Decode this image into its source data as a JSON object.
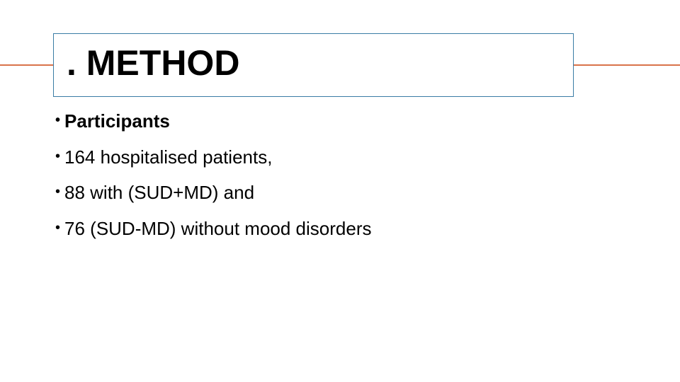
{
  "slide": {
    "title": ". METHOD",
    "title_box_border_color": "#3a7ca5",
    "title_fontsize": 50,
    "title_font_weight": 700,
    "accent_rule_color": "#d9734a",
    "bullets": [
      {
        "text": "Participants",
        "bold": true
      },
      {
        "text": "164 hospitalised patients,",
        "bold": false
      },
      {
        "text": "88 with (SUD+MD) and",
        "bold": false
      },
      {
        "text": "76 (SUD-MD) without mood disorders",
        "bold": false
      }
    ],
    "body_fontsize": 26,
    "bullet_glyph": "•",
    "background_color": "#ffffff",
    "text_color": "#000000"
  }
}
